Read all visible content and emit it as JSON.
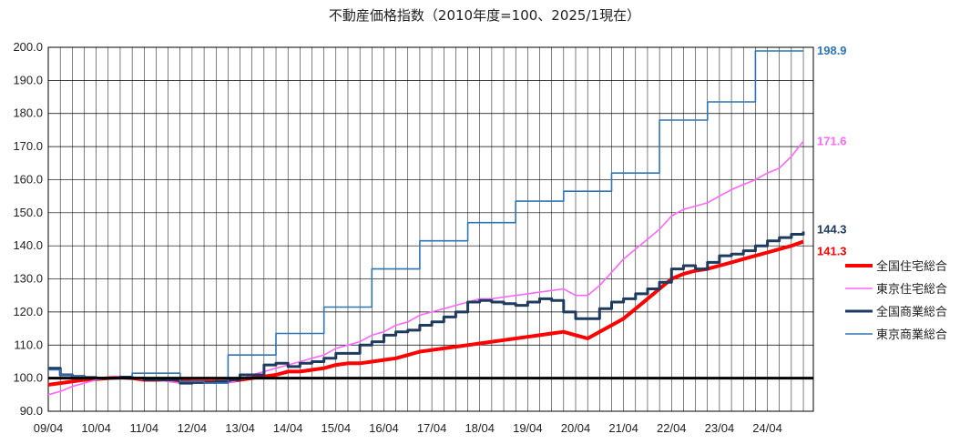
{
  "chart_data": {
    "type": "line",
    "title": "不動産価格指数（2010年度=100、2025/1現在）",
    "xlabel": "",
    "ylabel": "",
    "ylim": [
      90,
      200
    ],
    "y_ticks": [
      "90.0",
      "100.0",
      "110.0",
      "120.0",
      "130.0",
      "140.0",
      "150.0",
      "160.0",
      "170.0",
      "180.0",
      "190.0",
      "200.0"
    ],
    "x_ticks": [
      "09/04",
      "10/04",
      "11/04",
      "12/04",
      "13/04",
      "14/04",
      "15/04",
      "16/04",
      "17/04",
      "18/04",
      "19/04",
      "20/04",
      "21/04",
      "22/04",
      "23/04",
      "24/04"
    ],
    "x_start": "2009-04",
    "x_end": "2025-01",
    "grid": true,
    "baseline": 100,
    "legend_position": "right",
    "series": [
      {
        "name": "全国住宅総合",
        "color": "#ff0000",
        "width": 4,
        "end_label": "141.3",
        "step": false,
        "points": [
          [
            "2009-04",
            98
          ],
          [
            "2009-07",
            98.5
          ],
          [
            "2009-10",
            99
          ],
          [
            "2010-01",
            99.5
          ],
          [
            "2010-04",
            99.7
          ],
          [
            "2010-07",
            100
          ],
          [
            "2010-10",
            100.2
          ],
          [
            "2011-01",
            100
          ],
          [
            "2011-04",
            99.5
          ],
          [
            "2011-07",
            99.5
          ],
          [
            "2011-10",
            99.6
          ],
          [
            "2012-01",
            99.2
          ],
          [
            "2012-04",
            99
          ],
          [
            "2012-07",
            99
          ],
          [
            "2012-10",
            99
          ],
          [
            "2013-01",
            99
          ],
          [
            "2013-04",
            99.5
          ],
          [
            "2013-07",
            100
          ],
          [
            "2013-10",
            100.5
          ],
          [
            "2014-01",
            101
          ],
          [
            "2014-04",
            102
          ],
          [
            "2014-07",
            102
          ],
          [
            "2014-10",
            102.5
          ],
          [
            "2015-01",
            103
          ],
          [
            "2015-04",
            104
          ],
          [
            "2015-07",
            104.5
          ],
          [
            "2015-10",
            104.5
          ],
          [
            "2016-01",
            105
          ],
          [
            "2016-04",
            105.5
          ],
          [
            "2016-07",
            106
          ],
          [
            "2016-10",
            107
          ],
          [
            "2017-01",
            108
          ],
          [
            "2017-04",
            108.5
          ],
          [
            "2017-07",
            109
          ],
          [
            "2017-10",
            109.5
          ],
          [
            "2018-01",
            110
          ],
          [
            "2018-04",
            110.5
          ],
          [
            "2018-07",
            111
          ],
          [
            "2018-10",
            111.5
          ],
          [
            "2019-01",
            112
          ],
          [
            "2019-04",
            112.5
          ],
          [
            "2019-07",
            113
          ],
          [
            "2019-10",
            113.5
          ],
          [
            "2020-01",
            114
          ],
          [
            "2020-04",
            113
          ],
          [
            "2020-07",
            112
          ],
          [
            "2020-10",
            114
          ],
          [
            "2021-01",
            116
          ],
          [
            "2021-04",
            118
          ],
          [
            "2021-07",
            121
          ],
          [
            "2021-10",
            124
          ],
          [
            "2022-01",
            127
          ],
          [
            "2022-04",
            130
          ],
          [
            "2022-07",
            131.5
          ],
          [
            "2022-10",
            132.5
          ],
          [
            "2023-01",
            133
          ],
          [
            "2023-04",
            134
          ],
          [
            "2023-07",
            135
          ],
          [
            "2023-10",
            136
          ],
          [
            "2024-01",
            137
          ],
          [
            "2024-04",
            138
          ],
          [
            "2024-07",
            139
          ],
          [
            "2024-10",
            140
          ],
          [
            "2025-01",
            141.3
          ]
        ]
      },
      {
        "name": "東京住宅総合",
        "color": "#ff66ff",
        "width": 1.6,
        "end_label": "171.6",
        "step": false,
        "points": [
          [
            "2009-04",
            95
          ],
          [
            "2009-07",
            96
          ],
          [
            "2009-10",
            97.5
          ],
          [
            "2010-01",
            98.5
          ],
          [
            "2010-04",
            99.5
          ],
          [
            "2010-07",
            100
          ],
          [
            "2010-10",
            100.5
          ],
          [
            "2011-01",
            100
          ],
          [
            "2011-04",
            99.5
          ],
          [
            "2011-07",
            99.5
          ],
          [
            "2011-10",
            99
          ],
          [
            "2012-01",
            98.5
          ],
          [
            "2012-04",
            98.5
          ],
          [
            "2012-07",
            98.5
          ],
          [
            "2012-10",
            98.5
          ],
          [
            "2013-01",
            98.5
          ],
          [
            "2013-04",
            99.5
          ],
          [
            "2013-07",
            101
          ],
          [
            "2013-10",
            102
          ],
          [
            "2014-01",
            103
          ],
          [
            "2014-04",
            104
          ],
          [
            "2014-07",
            105
          ],
          [
            "2014-10",
            106
          ],
          [
            "2015-01",
            107
          ],
          [
            "2015-04",
            109
          ],
          [
            "2015-07",
            110
          ],
          [
            "2015-10",
            111
          ],
          [
            "2016-01",
            113
          ],
          [
            "2016-04",
            114
          ],
          [
            "2016-07",
            116
          ],
          [
            "2016-10",
            117
          ],
          [
            "2017-01",
            119
          ],
          [
            "2017-04",
            120
          ],
          [
            "2017-07",
            121
          ],
          [
            "2017-10",
            122
          ],
          [
            "2018-01",
            123
          ],
          [
            "2018-04",
            124
          ],
          [
            "2018-07",
            124
          ],
          [
            "2018-10",
            124.5
          ],
          [
            "2019-01",
            125
          ],
          [
            "2019-04",
            125.5
          ],
          [
            "2019-07",
            126
          ],
          [
            "2019-10",
            126.5
          ],
          [
            "2020-01",
            127
          ],
          [
            "2020-04",
            125
          ],
          [
            "2020-07",
            125
          ],
          [
            "2020-10",
            128
          ],
          [
            "2021-01",
            132
          ],
          [
            "2021-04",
            136
          ],
          [
            "2021-07",
            139
          ],
          [
            "2021-10",
            142
          ],
          [
            "2022-01",
            145
          ],
          [
            "2022-04",
            149
          ],
          [
            "2022-07",
            151
          ],
          [
            "2022-10",
            152
          ],
          [
            "2023-01",
            153
          ],
          [
            "2023-04",
            155
          ],
          [
            "2023-07",
            157
          ],
          [
            "2023-10",
            158.5
          ],
          [
            "2024-01",
            160
          ],
          [
            "2024-04",
            162
          ],
          [
            "2024-07",
            163.5
          ],
          [
            "2024-10",
            167
          ],
          [
            "2025-01",
            171.6
          ]
        ]
      },
      {
        "name": "全国商業総合",
        "color": "#1f3a5f",
        "width": 3,
        "end_label": "144.3",
        "step": true,
        "points": [
          [
            "2009-04",
            103
          ],
          [
            "2009-07",
            101
          ],
          [
            "2009-10",
            100.5
          ],
          [
            "2010-01",
            100.2
          ],
          [
            "2010-04",
            100
          ],
          [
            "2010-10",
            100.3
          ],
          [
            "2011-01",
            100
          ],
          [
            "2011-04",
            99.5
          ],
          [
            "2011-10",
            99.5
          ],
          [
            "2012-01",
            98.5
          ],
          [
            "2012-04",
            98.7
          ],
          [
            "2012-10",
            99
          ],
          [
            "2013-01",
            99.5
          ],
          [
            "2013-04",
            101
          ],
          [
            "2013-10",
            104
          ],
          [
            "2014-01",
            104.5
          ],
          [
            "2014-04",
            103.5
          ],
          [
            "2014-07",
            104.5
          ],
          [
            "2014-10",
            105
          ],
          [
            "2015-01",
            106
          ],
          [
            "2015-04",
            107.5
          ],
          [
            "2015-10",
            110
          ],
          [
            "2016-01",
            111
          ],
          [
            "2016-04",
            113
          ],
          [
            "2016-07",
            114
          ],
          [
            "2016-10",
            114.5
          ],
          [
            "2017-01",
            116
          ],
          [
            "2017-04",
            117
          ],
          [
            "2017-07",
            118.5
          ],
          [
            "2017-10",
            120
          ],
          [
            "2018-01",
            123
          ],
          [
            "2018-04",
            123.5
          ],
          [
            "2018-07",
            123
          ],
          [
            "2018-10",
            122.5
          ],
          [
            "2019-01",
            122
          ],
          [
            "2019-04",
            123
          ],
          [
            "2019-07",
            124
          ],
          [
            "2019-10",
            123.5
          ],
          [
            "2020-01",
            120
          ],
          [
            "2020-04",
            118
          ],
          [
            "2020-07",
            118
          ],
          [
            "2020-10",
            121
          ],
          [
            "2021-01",
            123
          ],
          [
            "2021-04",
            124
          ],
          [
            "2021-07",
            125.5
          ],
          [
            "2021-10",
            127
          ],
          [
            "2022-01",
            129
          ],
          [
            "2022-04",
            133
          ],
          [
            "2022-07",
            134
          ],
          [
            "2022-10",
            133
          ],
          [
            "2023-01",
            135
          ],
          [
            "2023-04",
            137
          ],
          [
            "2023-07",
            137.5
          ],
          [
            "2023-10",
            138.5
          ],
          [
            "2024-01",
            140
          ],
          [
            "2024-04",
            141.5
          ],
          [
            "2024-07",
            142.5
          ],
          [
            "2024-10",
            143.5
          ],
          [
            "2025-01",
            144.3
          ]
        ]
      },
      {
        "name": "東京商業総合",
        "color": "#2e75b6",
        "width": 1.6,
        "end_label": "198.9",
        "step": true,
        "points": [
          [
            "2009-04",
            102.5
          ],
          [
            "2009-07",
            101
          ],
          [
            "2009-10",
            100.5
          ],
          [
            "2010-01",
            100
          ],
          [
            "2011-01",
            101.5
          ],
          [
            "2012-01",
            99
          ],
          [
            "2012-07",
            98.5
          ],
          [
            "2013-01",
            107
          ],
          [
            "2014-01",
            113.5
          ],
          [
            "2015-01",
            121.5
          ],
          [
            "2016-01",
            133
          ],
          [
            "2017-01",
            141.5
          ],
          [
            "2018-01",
            147
          ],
          [
            "2019-01",
            153.5
          ],
          [
            "2020-01",
            156.5
          ],
          [
            "2021-01",
            162
          ],
          [
            "2022-01",
            178
          ],
          [
            "2023-01",
            183.5
          ],
          [
            "2024-01",
            198.9
          ],
          [
            "2025-01",
            198.9
          ]
        ]
      }
    ]
  }
}
